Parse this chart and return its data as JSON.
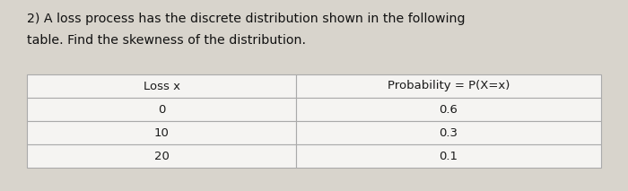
{
  "title_line1": "2) A loss process has the discrete distribution shown in the following",
  "title_line2": "table. Find the skewness of the distribution.",
  "col1_header": "Loss x",
  "col2_header": "Probability = P(X=x)",
  "rows": [
    [
      "0",
      "0.6"
    ],
    [
      "10",
      "0.3"
    ],
    [
      "20",
      "0.1"
    ]
  ],
  "border_color": "#aaaaaa",
  "cell_bg": "#f5f4f2",
  "text_color": "#1a1a1a",
  "title_color": "#111111",
  "fig_bg": "#d8d4cc"
}
